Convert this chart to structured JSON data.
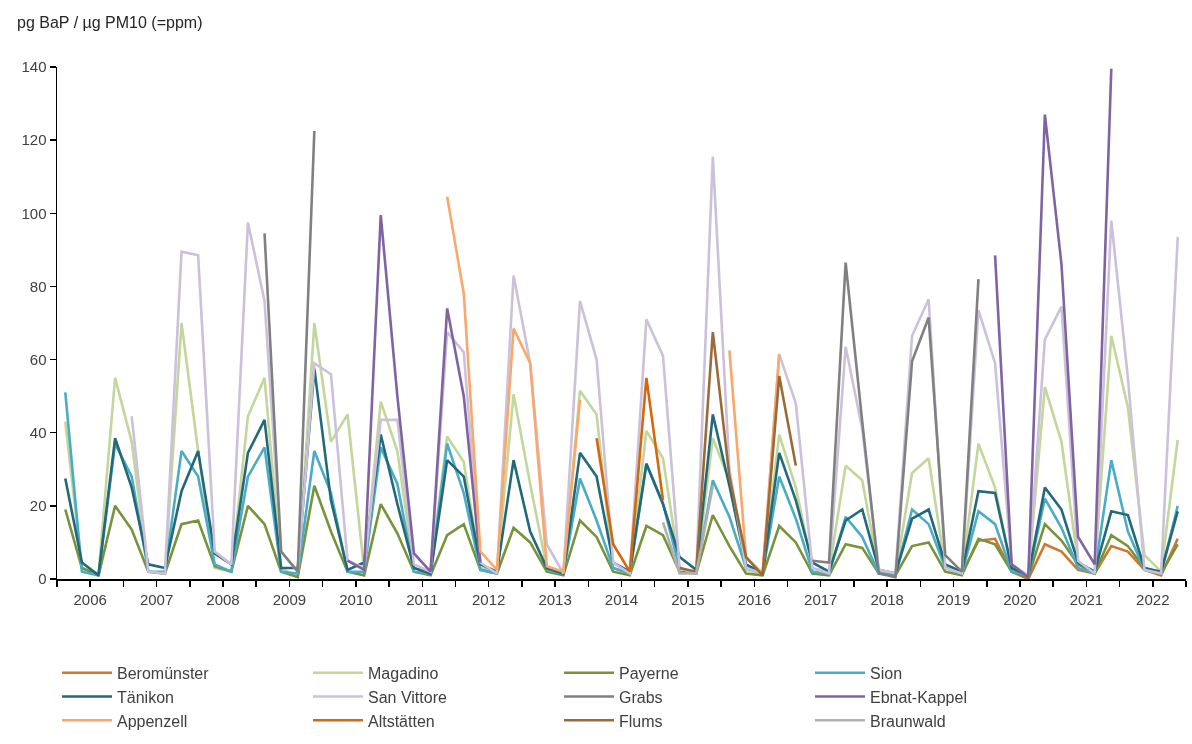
{
  "chart_data": {
    "type": "line",
    "ylabel": "pg BaP / µg PM10 (=ppm)",
    "x": [
      2006.125,
      2006.375,
      2006.625,
      2006.875,
      2007.125,
      2007.375,
      2007.625,
      2007.875,
      2008.125,
      2008.375,
      2008.625,
      2008.875,
      2009.125,
      2009.375,
      2009.625,
      2009.875,
      2010.125,
      2010.375,
      2010.625,
      2010.875,
      2011.125,
      2011.375,
      2011.625,
      2011.875,
      2012.125,
      2012.375,
      2012.625,
      2012.875,
      2013.125,
      2013.375,
      2013.625,
      2013.875,
      2014.125,
      2014.375,
      2014.625,
      2014.875,
      2015.125,
      2015.375,
      2015.625,
      2015.875,
      2016.125,
      2016.375,
      2016.625,
      2016.875,
      2017.125,
      2017.375,
      2017.625,
      2017.875,
      2018.125,
      2018.375,
      2018.625,
      2018.875,
      2019.125,
      2019.375,
      2019.625,
      2019.875,
      2020.125,
      2020.375,
      2020.625,
      2020.875,
      2021.125,
      2021.375,
      2021.625,
      2021.875,
      2022.125,
      2022.375,
      2022.625,
      2022.875
    ],
    "xlim": [
      2006,
      2023
    ],
    "xticks": [
      {
        "value": 2006,
        "label": null
      },
      {
        "value": 2006.5,
        "label": "2006"
      },
      {
        "value": 2007,
        "label": null
      },
      {
        "value": 2007.5,
        "label": "2007"
      },
      {
        "value": 2008,
        "label": null
      },
      {
        "value": 2008.5,
        "label": "2008"
      },
      {
        "value": 2009,
        "label": null
      },
      {
        "value": 2009.5,
        "label": "2009"
      },
      {
        "value": 2010,
        "label": null
      },
      {
        "value": 2010.5,
        "label": "2010"
      },
      {
        "value": 2011,
        "label": null
      },
      {
        "value": 2011.5,
        "label": "2011"
      },
      {
        "value": 2012,
        "label": null
      },
      {
        "value": 2012.5,
        "label": "2012"
      },
      {
        "value": 2013,
        "label": null
      },
      {
        "value": 2013.5,
        "label": "2013"
      },
      {
        "value": 2014,
        "label": null
      },
      {
        "value": 2014.5,
        "label": "2014"
      },
      {
        "value": 2015,
        "label": null
      },
      {
        "value": 2015.5,
        "label": "2015"
      },
      {
        "value": 2016,
        "label": null
      },
      {
        "value": 2016.5,
        "label": "2016"
      },
      {
        "value": 2017,
        "label": null
      },
      {
        "value": 2017.5,
        "label": "2017"
      },
      {
        "value": 2018,
        "label": null
      },
      {
        "value": 2018.5,
        "label": "2018"
      },
      {
        "value": 2019,
        "label": null
      },
      {
        "value": 2019.5,
        "label": "2019"
      },
      {
        "value": 2020,
        "label": null
      },
      {
        "value": 2020.5,
        "label": "2020"
      },
      {
        "value": 2021,
        "label": null
      },
      {
        "value": 2021.5,
        "label": "2021"
      },
      {
        "value": 2022,
        "label": null
      },
      {
        "value": 2022.5,
        "label": "2022"
      },
      {
        "value": 2023,
        "label": null
      }
    ],
    "ylim": [
      0,
      140
    ],
    "yticks": [
      0,
      20,
      40,
      60,
      80,
      100,
      120,
      140
    ],
    "grid": false,
    "legend": "bottom",
    "marker": "none",
    "line_style": "solid",
    "series": [
      {
        "name": "Beromünster",
        "color": "#d0782f",
        "values": [
          null,
          null,
          null,
          null,
          null,
          null,
          null,
          null,
          null,
          null,
          null,
          null,
          null,
          null,
          null,
          null,
          null,
          null,
          null,
          null,
          null,
          null,
          null,
          null,
          null,
          null,
          null,
          null,
          null,
          null,
          null,
          null,
          null,
          null,
          null,
          null,
          null,
          null,
          null,
          null,
          null,
          null,
          null,
          null,
          null,
          null,
          null,
          null,
          null,
          null,
          null,
          null,
          null,
          null,
          1.5,
          10.5,
          11,
          2,
          0,
          9.5,
          7.5,
          2.5,
          1.5,
          9,
          7.5,
          2.5,
          1,
          11
        ]
      },
      {
        "name": "Magadino",
        "color": "#c3d69b",
        "values": [
          43,
          3,
          1.5,
          55,
          37.5,
          2,
          1.5,
          70,
          35,
          3,
          2,
          44.5,
          55,
          3,
          0.5,
          70,
          37.5,
          45,
          2.5,
          48.5,
          35,
          3,
          2,
          39,
          32,
          3,
          2,
          50.5,
          26,
          3,
          1.5,
          51.5,
          45,
          3,
          1.5,
          40.5,
          33,
          3,
          1.5,
          38.5,
          27,
          2.5,
          1.5,
          39.5,
          25,
          3,
          2,
          31,
          27,
          2,
          1.5,
          29,
          33,
          3,
          1.5,
          37,
          25,
          2.5,
          1,
          52.5,
          37.5,
          4.5,
          2,
          66.5,
          47,
          6.5,
          2,
          38
        ]
      },
      {
        "name": "Payerne",
        "color": "#77933c",
        "values": [
          19,
          3,
          1,
          20,
          13.5,
          2,
          1.5,
          15,
          16,
          3.5,
          2,
          20,
          15,
          2,
          0.5,
          25.5,
          13,
          2,
          1,
          20.5,
          12.5,
          2,
          1,
          12,
          15,
          2.5,
          1.5,
          14,
          10,
          2,
          1,
          16,
          11.5,
          2,
          1,
          14.5,
          12,
          2,
          1.5,
          17.5,
          9,
          1.5,
          1,
          14.5,
          10,
          1.5,
          1,
          9.5,
          8.5,
          1.5,
          1,
          9,
          10,
          2,
          1,
          11,
          9.5,
          2,
          0.5,
          15,
          10.5,
          4,
          1.5,
          12,
          9,
          3,
          1.5,
          9.5
        ]
      },
      {
        "name": "Sion",
        "color": "#4bacc6",
        "values": [
          51,
          2,
          1,
          37,
          28,
          2,
          2,
          35,
          28,
          4,
          2,
          28,
          36,
          2,
          1.5,
          35,
          23.5,
          2,
          2,
          36,
          26,
          2,
          1.5,
          37,
          23.5,
          2.5,
          1.5,
          null,
          null,
          2.5,
          1.5,
          27.5,
          16,
          3,
          1.5,
          31.5,
          20.5,
          3,
          1.5,
          27,
          17,
          3,
          1.5,
          28,
          16.5,
          2,
          1.5,
          17,
          11.5,
          1.5,
          1,
          19,
          15,
          3,
          1.5,
          18.5,
          15,
          2,
          1,
          22,
          14,
          3,
          1.5,
          32.5,
          13,
          2.5,
          1.5,
          20
        ]
      },
      {
        "name": "Tänikon",
        "color": "#23697a",
        "values": [
          27.5,
          4.5,
          1,
          38.5,
          25,
          4,
          3,
          24,
          35,
          7,
          4,
          34.5,
          43.5,
          3,
          3,
          57.5,
          21.5,
          2.5,
          4.5,
          39.5,
          20.5,
          3,
          1.5,
          32.5,
          28,
          4,
          2,
          32.5,
          13,
          3,
          1.5,
          34.5,
          28,
          4.5,
          2,
          31.5,
          20.5,
          6,
          2.5,
          45,
          25.5,
          4,
          1.5,
          34.5,
          21.5,
          4.5,
          2,
          16,
          19,
          2.5,
          1.5,
          16.5,
          19,
          4,
          2,
          24,
          23.5,
          3,
          1,
          25,
          19,
          4.5,
          2,
          18.5,
          17.5,
          3,
          2,
          18.5
        ]
      },
      {
        "name": "San Vittore",
        "color": "#ccc1da",
        "values": [
          null,
          null,
          null,
          null,
          44.5,
          2,
          1.5,
          89.5,
          88.5,
          7.5,
          4,
          97.5,
          76,
          7.5,
          2,
          59,
          56,
          5,
          3,
          43.5,
          43.5,
          4,
          2,
          67.5,
          62,
          4.5,
          1.5,
          83,
          59,
          9.5,
          1.5,
          76,
          60,
          4.5,
          1.5,
          71,
          61,
          3,
          1.5,
          115.5,
          30,
          3,
          1.5,
          61.5,
          48,
          3,
          1.5,
          63.5,
          41,
          2.5,
          1.5,
          66.5,
          76.5,
          3,
          1.5,
          73.5,
          59,
          4,
          1,
          65.5,
          74.5,
          5,
          1.5,
          98,
          55,
          2.5,
          1.5,
          93.5
        ]
      },
      {
        "name": "Grabs",
        "color": "#808080",
        "values": [
          null,
          null,
          null,
          null,
          null,
          null,
          null,
          null,
          null,
          null,
          null,
          null,
          94.5,
          7.5,
          2,
          122.5,
          null,
          null,
          null,
          null,
          null,
          null,
          null,
          null,
          null,
          null,
          null,
          null,
          null,
          null,
          null,
          null,
          null,
          null,
          null,
          null,
          null,
          null,
          null,
          null,
          null,
          null,
          null,
          null,
          null,
          5,
          4.5,
          86.5,
          43,
          1.5,
          0.5,
          59.5,
          71.5,
          6.5,
          2,
          82,
          null,
          null,
          null,
          null,
          null,
          null,
          null,
          null,
          null,
          null,
          null,
          null
        ]
      },
      {
        "name": "Ebnat-Kappel",
        "color": "#8064a2",
        "values": [
          null,
          null,
          null,
          null,
          null,
          null,
          null,
          null,
          null,
          null,
          null,
          null,
          null,
          null,
          null,
          null,
          null,
          5,
          2.5,
          99.5,
          50,
          7,
          2,
          74,
          50,
          4.5,
          null,
          null,
          null,
          null,
          null,
          null,
          null,
          null,
          null,
          null,
          null,
          null,
          null,
          null,
          null,
          null,
          null,
          null,
          null,
          null,
          null,
          null,
          null,
          null,
          null,
          null,
          null,
          null,
          null,
          null,
          88.5,
          4,
          0.5,
          127,
          86,
          11.5,
          4,
          139.5,
          null,
          null,
          null,
          null
        ]
      },
      {
        "name": "Appenzell",
        "color": "#f9a86a",
        "values": [
          null,
          null,
          null,
          null,
          null,
          null,
          null,
          null,
          null,
          null,
          null,
          null,
          null,
          null,
          null,
          null,
          null,
          null,
          null,
          null,
          null,
          null,
          null,
          104.5,
          78,
          7.5,
          2.5,
          68.5,
          59,
          3.5,
          2,
          49,
          null,
          null,
          null,
          null,
          null,
          null,
          null,
          null,
          62.5,
          6,
          1.5,
          61.5,
          null,
          null,
          null,
          null,
          null,
          null,
          null,
          null,
          null,
          null,
          null,
          null,
          null,
          null,
          null,
          null,
          null,
          null,
          null,
          null,
          null,
          null,
          null,
          null
        ]
      },
      {
        "name": "Altstätten",
        "color": "#d4680c",
        "values": [
          null,
          null,
          null,
          null,
          null,
          null,
          null,
          null,
          null,
          null,
          null,
          null,
          null,
          null,
          null,
          null,
          null,
          null,
          null,
          null,
          null,
          null,
          null,
          null,
          null,
          null,
          null,
          null,
          null,
          null,
          null,
          null,
          38.5,
          9.5,
          2,
          55,
          21.5,
          null,
          null,
          null,
          null,
          null,
          null,
          null,
          null,
          null,
          null,
          null,
          null,
          null,
          null,
          null,
          null,
          null,
          null,
          null,
          null,
          null,
          null,
          null,
          null,
          null,
          null,
          null,
          null,
          null,
          null,
          null
        ]
      },
      {
        "name": "Flums",
        "color": "#9b6a39",
        "values": [
          null,
          null,
          null,
          null,
          null,
          null,
          null,
          null,
          null,
          null,
          null,
          null,
          null,
          null,
          null,
          null,
          null,
          null,
          null,
          null,
          null,
          null,
          null,
          null,
          null,
          null,
          null,
          null,
          null,
          null,
          null,
          null,
          null,
          null,
          null,
          null,
          null,
          3,
          2,
          67.5,
          28,
          6,
          1,
          55.5,
          31,
          null,
          null,
          null,
          null,
          null,
          null,
          null,
          null,
          null,
          null,
          null,
          null,
          null,
          null,
          null,
          null,
          null,
          null,
          null,
          null,
          null,
          null,
          null
        ]
      },
      {
        "name": "Braunwald",
        "color": "#b0b0b0",
        "values": [
          null,
          null,
          null,
          null,
          null,
          null,
          null,
          null,
          null,
          null,
          null,
          null,
          null,
          null,
          null,
          null,
          null,
          null,
          null,
          null,
          null,
          null,
          null,
          null,
          null,
          null,
          null,
          null,
          null,
          null,
          null,
          null,
          null,
          null,
          null,
          null,
          15.5,
          1.5,
          1.5,
          25.5,
          null,
          null,
          null,
          null,
          null,
          null,
          null,
          null,
          null,
          null,
          null,
          null,
          null,
          null,
          null,
          null,
          null,
          null,
          null,
          null,
          null,
          null,
          null,
          null,
          null,
          null,
          null,
          null
        ]
      }
    ]
  }
}
